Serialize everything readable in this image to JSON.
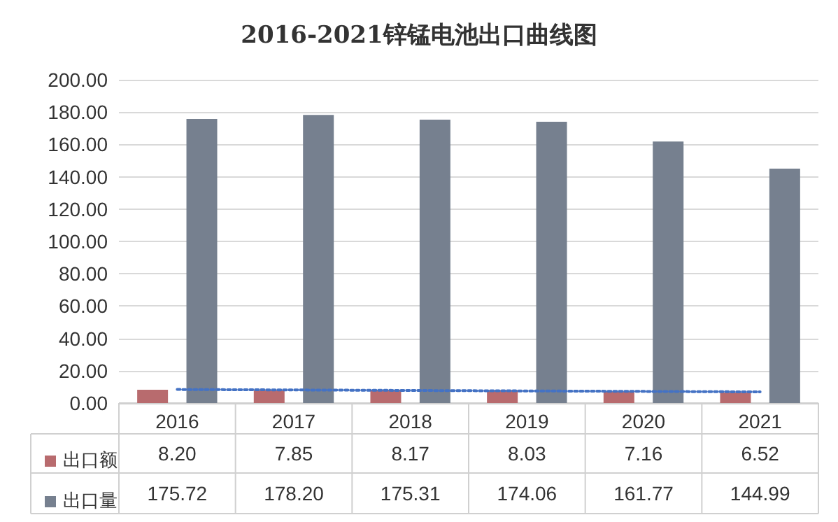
{
  "chart_data": {
    "type": "bar",
    "title": "2016-2021锌锰电池出口曲线图",
    "categories": [
      "2016",
      "2017",
      "2018",
      "2019",
      "2020",
      "2021"
    ],
    "series": [
      {
        "name": "出口额",
        "color": "#b86b6e",
        "values": [
          8.2,
          7.85,
          8.17,
          8.03,
          7.16,
          6.52
        ],
        "value_labels": [
          "8.20",
          "7.85",
          "8.17",
          "8.03",
          "7.16",
          "6.52"
        ]
      },
      {
        "name": "出口量",
        "color": "#76808f",
        "values": [
          175.72,
          178.2,
          175.31,
          174.06,
          161.77,
          144.99
        ],
        "value_labels": [
          "175.72",
          "178.20",
          "175.31",
          "174.06",
          "161.77",
          "144.99"
        ]
      },
      {
        "type": "line",
        "color": "#4472c4",
        "line_style": "dotted",
        "marker": "none",
        "values": [
          8.4,
          8.1,
          7.8,
          7.5,
          7.2,
          6.9
        ]
      }
    ],
    "ylim": [
      0,
      200
    ],
    "yticks": [
      {
        "value": 0,
        "label": "0.00"
      },
      {
        "value": 20,
        "label": "20.00"
      },
      {
        "value": 40,
        "label": "40.00"
      },
      {
        "value": 60,
        "label": "60.00"
      },
      {
        "value": 80,
        "label": "80.00"
      },
      {
        "value": 100,
        "label": "100.00"
      },
      {
        "value": 120,
        "label": "120.00"
      },
      {
        "value": 140,
        "label": "140.00"
      },
      {
        "value": 160,
        "label": "160.00"
      },
      {
        "value": 180,
        "label": "180.00"
      },
      {
        "value": 200,
        "label": "200.00"
      }
    ],
    "grid": "y",
    "legend": "bottom left"
  }
}
